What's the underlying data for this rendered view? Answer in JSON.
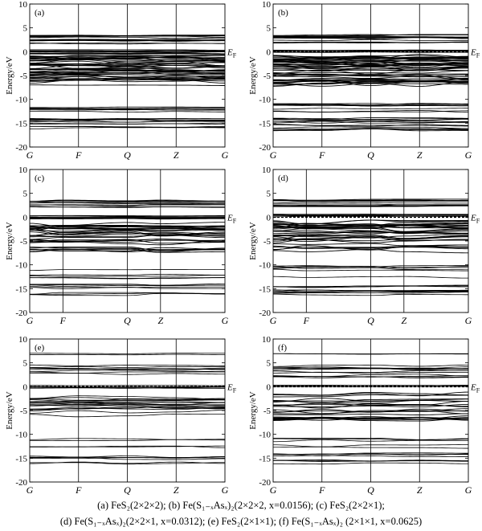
{
  "figure": {
    "caption_line1": [
      "(a)  FeS₂(2×2×2); ",
      "(b) Fe(S₁₋ₓAsₓ)₂(2×2×2, x=0.0156); ",
      "(c) FeS₂(2×2×1);"
    ],
    "caption_line2": [
      "(d) Fe(S₁₋ₓAsₓ)₂(2×2×1, x=0.0312); ",
      "(e) FeS₂(2×1×1); ",
      "(f) Fe(S₁₋ₓAsₓ)₂ (2×1×1, x=0.0625)"
    ]
  },
  "chart_data": [
    {
      "type": "line",
      "panel_label": "(a)",
      "ylabel": "Energy/eV",
      "ylim": [
        -20,
        10
      ],
      "yticks": [
        10,
        5,
        0,
        -5,
        -10,
        -15,
        -20
      ],
      "x_tick_labels": [
        "G",
        "F",
        "Q",
        "Z",
        "G"
      ],
      "x_tick_positions": [
        0,
        0.25,
        0.5,
        0.75,
        1.0
      ],
      "fermi_label": "EF",
      "fermi_level": 0,
      "fermi_dashed": false,
      "band_groups": [
        {
          "center": 2.6,
          "spread": 0.9,
          "count": 14
        },
        {
          "center": 0.0,
          "spread": 0.45,
          "count": 10
        },
        {
          "center": -3.8,
          "spread": 3.0,
          "count": 44
        },
        {
          "center": -12.0,
          "spread": 0.6,
          "count": 6
        },
        {
          "center": -15.2,
          "spread": 1.3,
          "count": 12
        }
      ]
    },
    {
      "type": "line",
      "panel_label": "(b)",
      "ylabel": "Energy/eV",
      "ylim": [
        -20,
        10
      ],
      "yticks": [
        10,
        5,
        0,
        -5,
        -10,
        -15,
        -20
      ],
      "x_tick_labels": [
        "G",
        "F",
        "Q",
        "Z",
        "G"
      ],
      "x_tick_positions": [
        0,
        0.25,
        0.5,
        0.75,
        1.0
      ],
      "fermi_label": "EF",
      "fermi_level": 0,
      "fermi_dashed": true,
      "band_groups": [
        {
          "center": 2.6,
          "spread": 0.9,
          "count": 14
        },
        {
          "center": 0.2,
          "spread": 0.35,
          "count": 6
        },
        {
          "center": -3.8,
          "spread": 3.0,
          "count": 48
        },
        {
          "center": -12.0,
          "spread": 1.2,
          "count": 8
        },
        {
          "center": -15.2,
          "spread": 1.3,
          "count": 14
        }
      ]
    },
    {
      "type": "line",
      "panel_label": "(c)",
      "ylabel": "Energy/eV",
      "ylim": [
        -20,
        10
      ],
      "yticks": [
        10,
        5,
        0,
        -5,
        -10,
        -15,
        -20
      ],
      "x_tick_labels": [
        "G",
        "F",
        "Q",
        "Z",
        "G"
      ],
      "x_tick_positions": [
        0,
        0.17,
        0.5,
        0.67,
        1.0
      ],
      "fermi_label": "EF",
      "fermi_level": 0,
      "fermi_dashed": false,
      "band_groups": [
        {
          "center": 2.8,
          "spread": 0.9,
          "count": 10
        },
        {
          "center": 0.0,
          "spread": 0.45,
          "count": 8
        },
        {
          "center": -4.2,
          "spread": 2.8,
          "count": 30
        },
        {
          "center": -12.0,
          "spread": 1.0,
          "count": 5
        },
        {
          "center": -15.3,
          "spread": 1.2,
          "count": 8
        }
      ]
    },
    {
      "type": "line",
      "panel_label": "(d)",
      "ylabel": "Energy/eV",
      "ylim": [
        -20,
        10
      ],
      "yticks": [
        10,
        5,
        0,
        -5,
        -10,
        -15,
        -20
      ],
      "x_tick_labels": [
        "G",
        "F",
        "Q",
        "Z",
        "G"
      ],
      "x_tick_positions": [
        0,
        0.17,
        0.5,
        0.67,
        1.0
      ],
      "fermi_label": "EF",
      "fermi_level": 0,
      "fermi_dashed": true,
      "band_groups": [
        {
          "center": 2.9,
          "spread": 0.9,
          "count": 12
        },
        {
          "center": 0.3,
          "spread": 0.35,
          "count": 5
        },
        {
          "center": -4.0,
          "spread": 3.0,
          "count": 34
        },
        {
          "center": -11.5,
          "spread": 1.4,
          "count": 6
        },
        {
          "center": -15.3,
          "spread": 1.3,
          "count": 10
        }
      ]
    },
    {
      "type": "line",
      "panel_label": "(e)",
      "ylabel": "Energy/eV",
      "ylim": [
        -20,
        10
      ],
      "yticks": [
        10,
        5,
        0,
        -5,
        -10,
        -15,
        -20
      ],
      "x_tick_labels": [
        "G",
        "F",
        "Q",
        "Z",
        "G"
      ],
      "x_tick_positions": [
        0,
        0.25,
        0.5,
        0.75,
        1.0
      ],
      "fermi_label": "EF",
      "fermi_level": 0,
      "fermi_dashed": true,
      "band_groups": [
        {
          "center": 6.8,
          "spread": 0.4,
          "count": 2
        },
        {
          "center": 3.2,
          "spread": 1.2,
          "count": 8
        },
        {
          "center": 0.0,
          "spread": 0.4,
          "count": 5
        },
        {
          "center": -4.3,
          "spread": 2.6,
          "count": 18
        },
        {
          "center": -11.8,
          "spread": 1.0,
          "count": 4
        },
        {
          "center": -15.3,
          "spread": 1.3,
          "count": 6
        }
      ]
    },
    {
      "type": "line",
      "panel_label": "(f)",
      "ylabel": "Energy/eV",
      "ylim": [
        -20,
        10
      ],
      "yticks": [
        10,
        5,
        0,
        -5,
        -10,
        -15,
        -20
      ],
      "x_tick_labels": [
        "G",
        "F",
        "Q",
        "Z",
        "G"
      ],
      "x_tick_positions": [
        0,
        0.25,
        0.5,
        0.75,
        1.0
      ],
      "fermi_label": "EF",
      "fermi_level": 0,
      "fermi_dashed": true,
      "band_groups": [
        {
          "center": 6.8,
          "spread": 0.4,
          "count": 2
        },
        {
          "center": 3.0,
          "spread": 1.4,
          "count": 12
        },
        {
          "center": 0.2,
          "spread": 0.4,
          "count": 4
        },
        {
          "center": -4.2,
          "spread": 2.8,
          "count": 24
        },
        {
          "center": -11.5,
          "spread": 1.4,
          "count": 5
        },
        {
          "center": -15.3,
          "spread": 1.3,
          "count": 8
        }
      ]
    }
  ]
}
